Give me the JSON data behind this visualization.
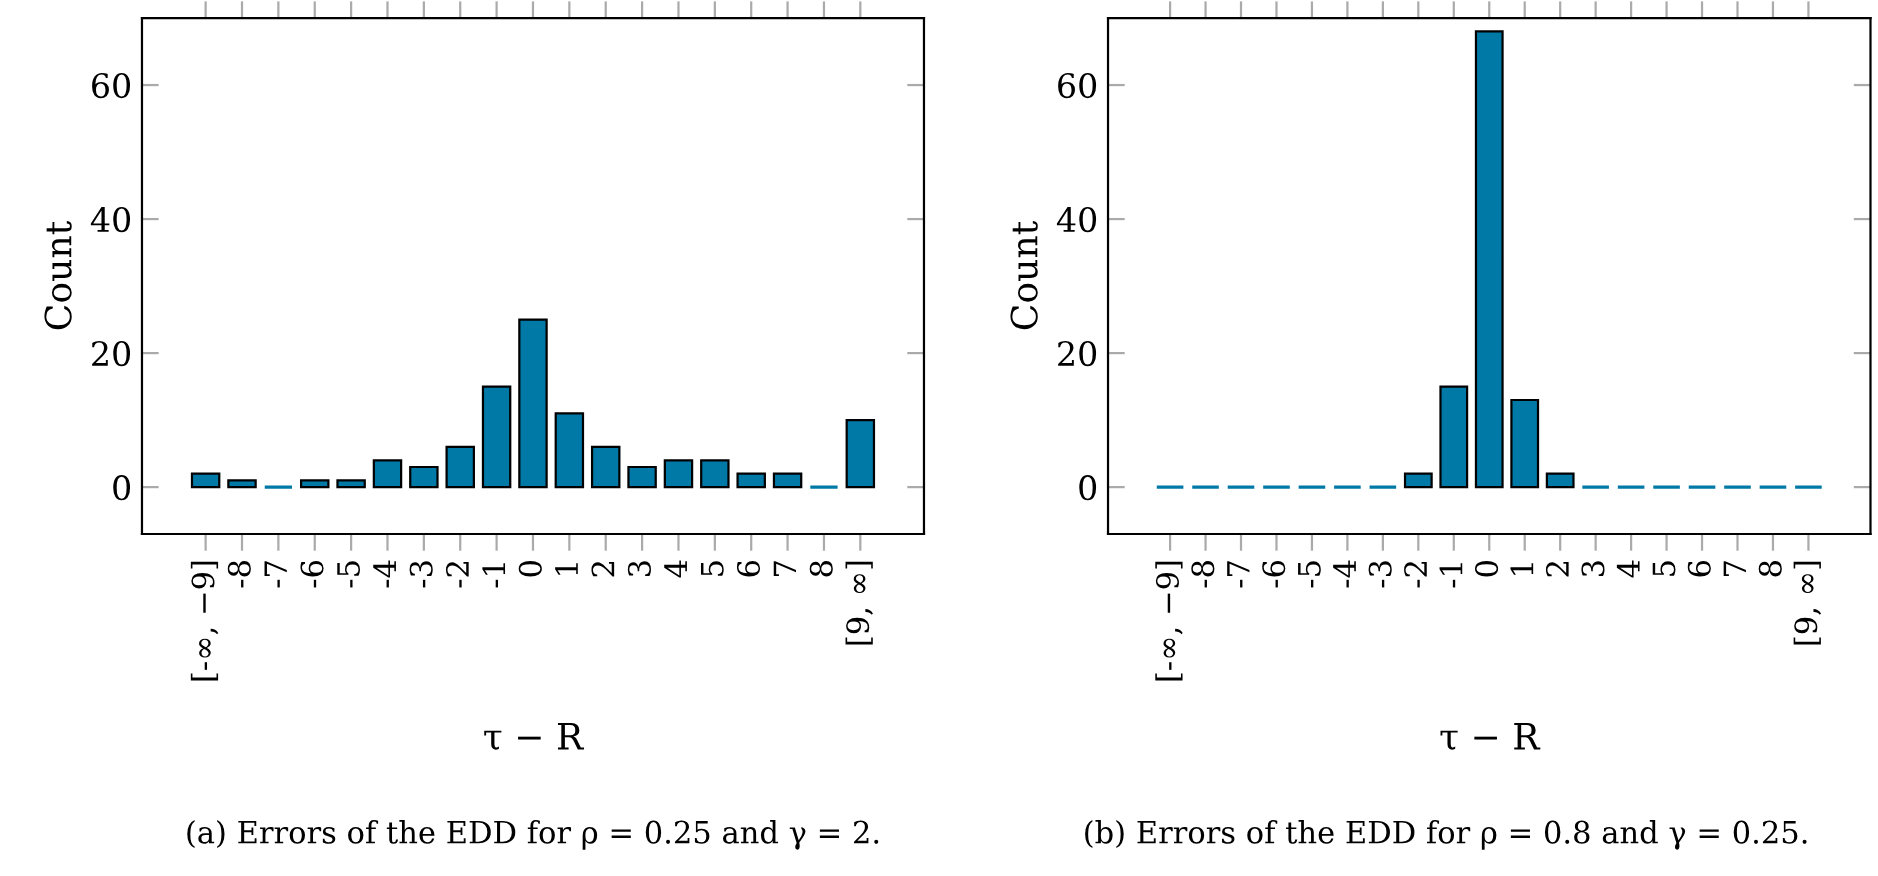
{
  "chart_data": [
    {
      "type": "bar",
      "xlabel": "τ − R",
      "ylabel": "Count",
      "categories": [
        "[-∞, −9]",
        "-8",
        "-7",
        "-6",
        "-5",
        "-4",
        "-3",
        "-2",
        "-1",
        "0",
        "1",
        "2",
        "3",
        "4",
        "5",
        "6",
        "7",
        "8",
        "[9, ∞]"
      ],
      "values": [
        2,
        1,
        0,
        1,
        1,
        4,
        3,
        6,
        15,
        25,
        11,
        6,
        3,
        4,
        4,
        2,
        2,
        0,
        10
      ],
      "color": "#0079a7",
      "ylim": [
        -7,
        70
      ],
      "yticks": [
        0,
        20,
        40,
        60
      ],
      "grid": false,
      "annotations": [
        "(a) Errors of the EDD for ρ = 0.25 and γ = 2."
      ]
    },
    {
      "type": "bar",
      "xlabel": "τ − R",
      "ylabel": "Count",
      "categories": [
        "[-∞, −9]",
        "-8",
        "-7",
        "-6",
        "-5",
        "-4",
        "-3",
        "-2",
        "-1",
        "0",
        "1",
        "2",
        "3",
        "4",
        "5",
        "6",
        "7",
        "8",
        "[9, ∞]"
      ],
      "values": [
        0,
        0,
        0,
        0,
        0,
        0,
        0,
        2,
        15,
        68,
        13,
        2,
        0,
        0,
        0,
        0,
        0,
        0,
        0
      ],
      "color": "#0079a7",
      "ylim": [
        -7,
        70
      ],
      "yticks": [
        0,
        20,
        40,
        60
      ],
      "grid": false,
      "annotations": [
        "(b) Errors of the EDD for ρ = 0.8 and γ = 0.25."
      ]
    }
  ]
}
